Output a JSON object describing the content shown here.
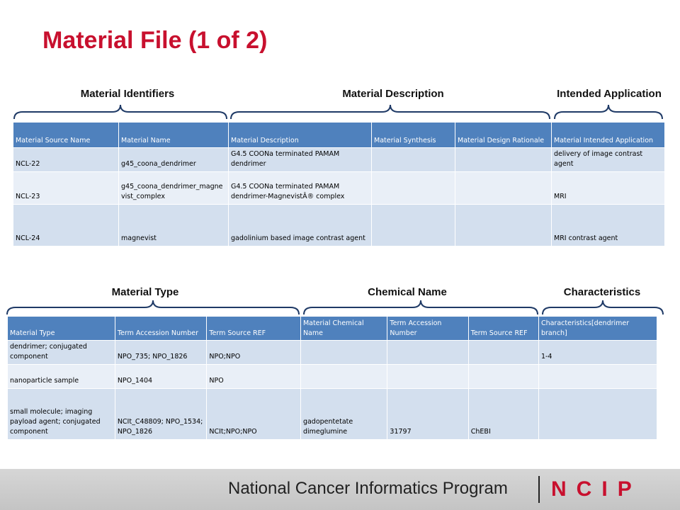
{
  "slide": {
    "title": "Material File (1 of 2)"
  },
  "top_groups": [
    "Material Identifiers",
    "Material Description",
    "Intended Application"
  ],
  "bottom_groups": [
    "Material Type",
    "Chemical Name",
    "Characteristics"
  ],
  "table1": {
    "headers": [
      "Material Source Name",
      "Material Name",
      "Material Description",
      "Material Synthesis",
      "Material Design Rationale",
      "Material Intended Application"
    ],
    "rows": [
      [
        "NCL-22",
        "g45_coona_dendrimer",
        "G4.5 COONa terminated PAMAM dendrimer",
        "",
        "",
        "delivery of image contrast agent"
      ],
      [
        "NCL-23",
        "g45_coona_dendrimer_magnevist_complex",
        "G4.5 COONa terminated PAMAM dendrimer-MagnevistÂ® complex",
        "",
        "",
        "MRI"
      ],
      [
        "NCL-24",
        "magnevist",
        "gadolinium based image contrast agent",
        "",
        "",
        "MRI contrast agent"
      ]
    ]
  },
  "table2": {
    "headers": [
      "Material Type",
      "Term Accession Number",
      "Term Source REF",
      "Material Chemical Name",
      "Term Accession Number",
      "Term Source REF",
      "Characteristics[dendrimer branch]"
    ],
    "rows": [
      [
        "dendrimer; conjugated component",
        "NPO_735; NPO_1826",
        "NPO;NPO",
        "",
        "",
        "",
        "1-4"
      ],
      [
        "nanoparticle sample",
        "NPO_1404",
        "NPO",
        "",
        "",
        "",
        ""
      ],
      [
        "small molecule; imaging payload agent; conjugated component",
        "NCIt_C48809; NPO_1534; NPO_1826",
        "NCIt;NPO;NPO",
        "gadopentetate dimeglumine",
        "31797",
        "ChEBI",
        ""
      ]
    ]
  },
  "footer": {
    "program_name": "National Cancer Informatics Program",
    "logo_text": "NCIP",
    "colors": {
      "logo_red": "#c8102e",
      "logo_dark": "#333333",
      "title_red": "#c8102e",
      "header_blue": "#4f81bd"
    }
  }
}
